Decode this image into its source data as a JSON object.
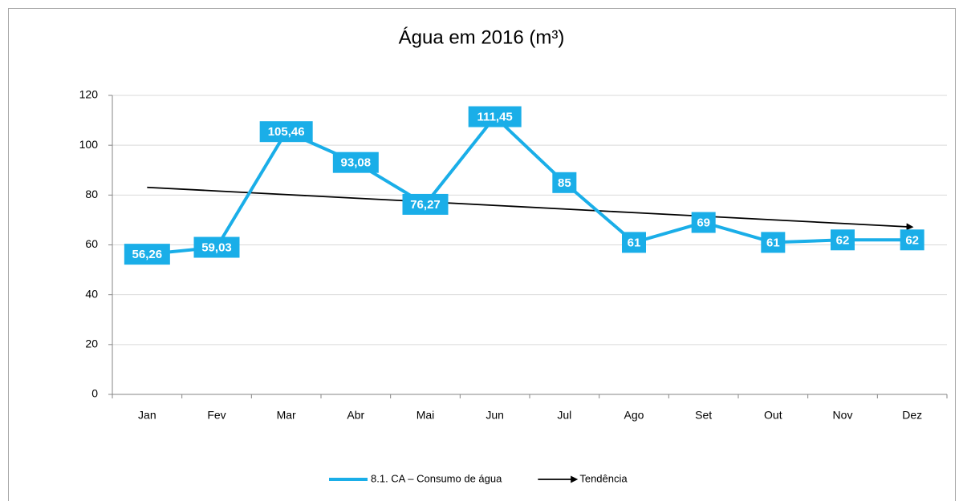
{
  "chart_data": {
    "type": "line",
    "title": "Água em 2016 (m³)",
    "categories": [
      "Jan",
      "Fev",
      "Mar",
      "Abr",
      "Mai",
      "Jun",
      "Jul",
      "Ago",
      "Set",
      "Out",
      "Nov",
      "Dez"
    ],
    "series": [
      {
        "name": "8.1. CA – Consumo de água",
        "color": "#1aaee8",
        "values": [
          56.26,
          59.03,
          105.46,
          93.08,
          76.27,
          111.45,
          85,
          61,
          69,
          61,
          62,
          62
        ],
        "value_labels": [
          "56,26",
          "59,03",
          "105,46",
          "93,08",
          "76,27",
          "111,45",
          "85",
          "61",
          "69",
          "61",
          "62",
          "62"
        ]
      },
      {
        "name": "Tendência",
        "color": "#000000",
        "values": [
          83.09,
          81.64,
          80.19,
          78.74,
          77.3,
          75.85,
          74.4,
          72.95,
          71.51,
          70.06,
          68.61,
          67.17
        ]
      }
    ],
    "ylim": [
      0,
      120
    ],
    "yticks": [
      0,
      20,
      40,
      60,
      80,
      100,
      120
    ],
    "grid": true,
    "legend": "bottom"
  }
}
